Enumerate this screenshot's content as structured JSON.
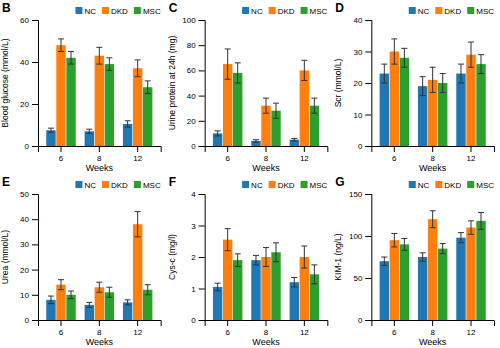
{
  "chart_data": [
    {
      "type": "bar",
      "title": "B",
      "ylabel": "Blood glucose (mmol/L)",
      "xlabel": "Weeks",
      "categories": [
        "6",
        "8",
        "12"
      ],
      "series": [
        {
          "name": "NC",
          "values": [
            7.5,
            7.0,
            10.5
          ],
          "errors": [
            1.0,
            1.0,
            1.5
          ]
        },
        {
          "name": "DKD",
          "values": [
            48,
            43,
            37
          ],
          "errors": [
            3.0,
            4.0,
            4.0
          ]
        },
        {
          "name": "MSC",
          "values": [
            42,
            39,
            28
          ],
          "errors": [
            3.0,
            3.0,
            3.0
          ]
        }
      ],
      "ylim": [
        0,
        60
      ],
      "yticks": [
        0,
        20,
        40,
        60
      ],
      "legend": "upper right"
    },
    {
      "type": "bar",
      "title": "C",
      "ylabel": "Urine protein at 24h (mg)",
      "xlabel": "Weeks",
      "categories": [
        "6",
        "8",
        "12"
      ],
      "series": [
        {
          "name": "NC",
          "values": [
            10,
            4,
            5
          ],
          "errors": [
            2.0,
            1.0,
            1.0
          ]
        },
        {
          "name": "DKD",
          "values": [
            65,
            32,
            60
          ],
          "errors": [
            12.0,
            6.0,
            8.0
          ]
        },
        {
          "name": "MSC",
          "values": [
            58,
            28,
            32
          ],
          "errors": [
            8.0,
            6.0,
            6.0
          ]
        }
      ],
      "ylim": [
        0,
        100
      ],
      "yticks": [
        0,
        20,
        40,
        60,
        80,
        100
      ],
      "legend": "upper right"
    },
    {
      "type": "bar",
      "title": "D",
      "ylabel": "Scr (mmol/L)",
      "xlabel": "Weeks",
      "categories": [
        "6",
        "8",
        "12"
      ],
      "series": [
        {
          "name": "NC",
          "values": [
            23,
            19,
            23
          ],
          "errors": [
            3.0,
            3.0,
            3.0
          ]
        },
        {
          "name": "DKD",
          "values": [
            30,
            21,
            29
          ],
          "errors": [
            4.0,
            4.0,
            4.0
          ]
        },
        {
          "name": "MSC",
          "values": [
            28,
            20,
            26
          ],
          "errors": [
            3.0,
            3.0,
            3.0
          ]
        }
      ],
      "ylim": [
        0,
        40
      ],
      "yticks": [
        0,
        10,
        20,
        30,
        40
      ],
      "legend": "upper right"
    },
    {
      "type": "bar",
      "title": "E",
      "ylabel": "Urea (mmol/L)",
      "xlabel": "Weeks",
      "categories": [
        "6",
        "8",
        "12"
      ],
      "series": [
        {
          "name": "NC",
          "values": [
            8,
            6,
            7
          ],
          "errors": [
            1.5,
            1.0,
            1.0
          ]
        },
        {
          "name": "DKD",
          "values": [
            14,
            13,
            38
          ],
          "errors": [
            2.0,
            2.0,
            5.0
          ]
        },
        {
          "name": "MSC",
          "values": [
            10,
            11,
            12
          ],
          "errors": [
            1.5,
            2.0,
            2.0
          ]
        }
      ],
      "ylim": [
        0,
        50
      ],
      "yticks": [
        0,
        10,
        20,
        30,
        40,
        50
      ],
      "legend": "upper right"
    },
    {
      "type": "bar",
      "title": "F",
      "ylabel": "Cys-c (mg/l)",
      "xlabel": "Weeks",
      "categories": [
        "6",
        "8",
        "12"
      ],
      "series": [
        {
          "name": "NC",
          "values": [
            1.05,
            1.9,
            1.2
          ],
          "errors": [
            0.12,
            0.15,
            0.15
          ]
        },
        {
          "name": "DKD",
          "values": [
            2.55,
            2.0,
            2.0
          ],
          "errors": [
            0.35,
            0.3,
            0.35
          ]
        },
        {
          "name": "MSC",
          "values": [
            1.9,
            2.15,
            1.45
          ],
          "errors": [
            0.2,
            0.3,
            0.3
          ]
        }
      ],
      "ylim": [
        0,
        4
      ],
      "yticks": [
        0,
        1,
        2,
        3,
        4
      ],
      "legend": "upper right"
    },
    {
      "type": "bar",
      "title": "G",
      "ylabel": "KIM-1 (ng/L)",
      "xlabel": "Weeks",
      "categories": [
        "6",
        "8",
        "12"
      ],
      "series": [
        {
          "name": "NC",
          "values": [
            70,
            75,
            98
          ],
          "errors": [
            5.0,
            5.0,
            6.0
          ]
        },
        {
          "name": "DKD",
          "values": [
            95,
            120,
            110
          ],
          "errors": [
            8.0,
            10.0,
            8.0
          ]
        },
        {
          "name": "MSC",
          "values": [
            90,
            85,
            118
          ],
          "errors": [
            7.0,
            6.0,
            10.0
          ]
        }
      ],
      "ylim": [
        0,
        150
      ],
      "yticks": [
        0,
        50,
        100,
        150
      ],
      "legend": "upper right"
    }
  ]
}
